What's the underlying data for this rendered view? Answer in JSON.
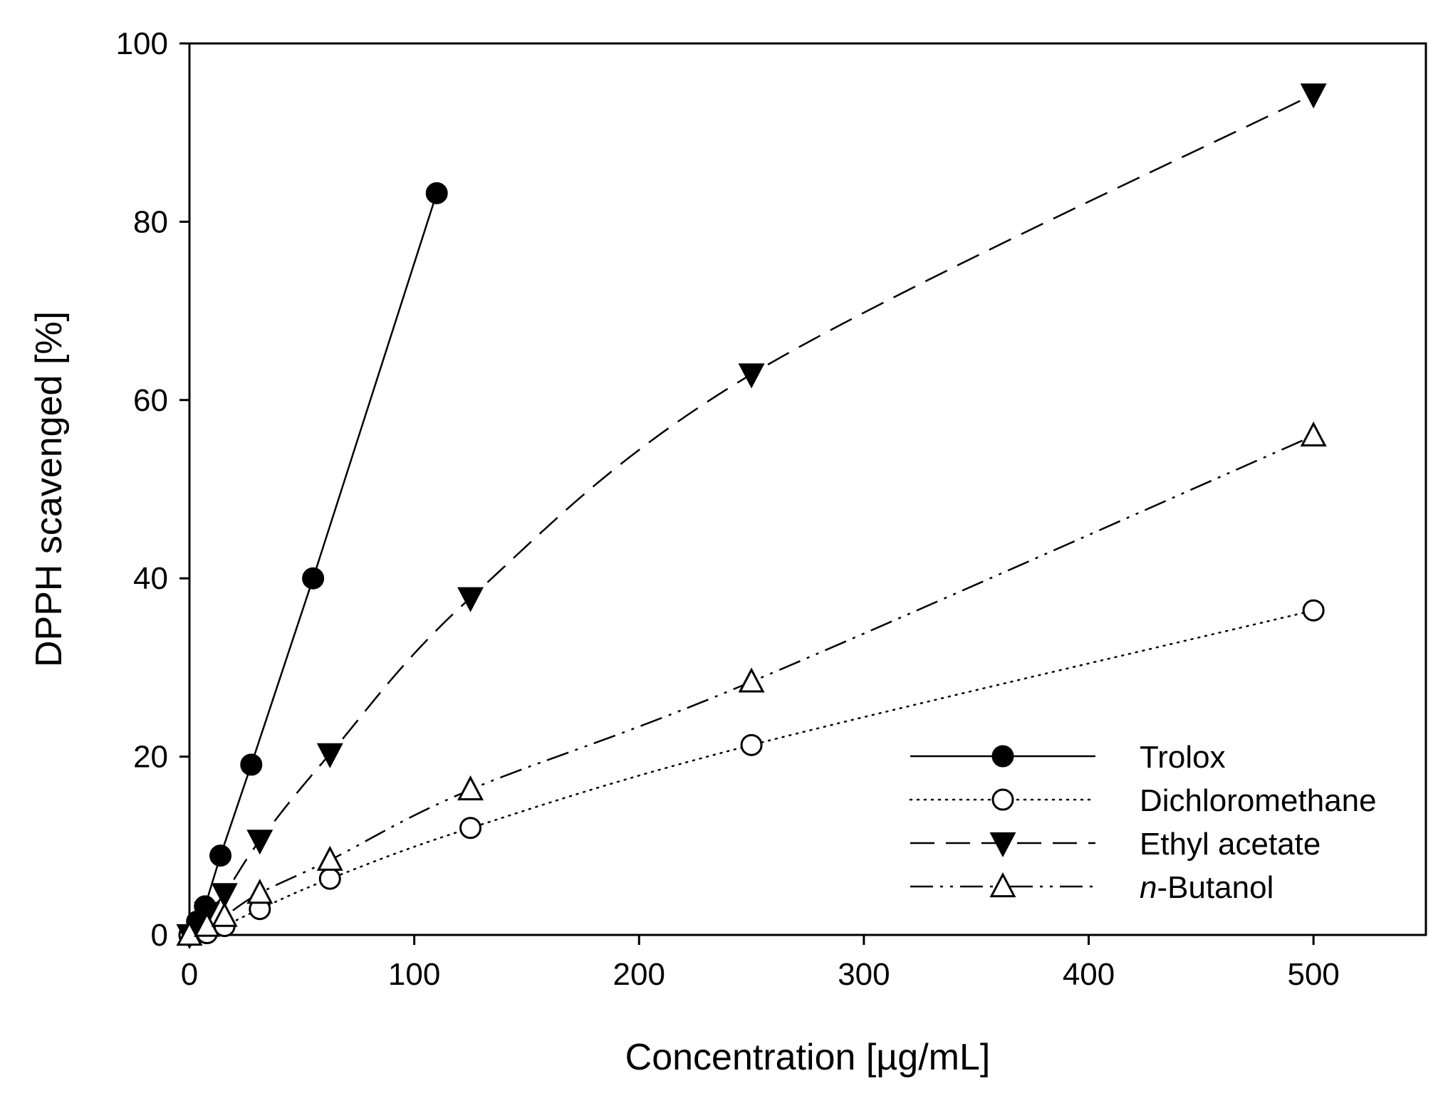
{
  "chart_data": {
    "type": "line",
    "title": "",
    "xlabel": "Concentration [µg/mL]",
    "ylabel": "DPPH scavenged [%]",
    "xlim": [
      0,
      550
    ],
    "ylim": [
      0,
      100
    ],
    "xticks": [
      0,
      100,
      200,
      300,
      400,
      500
    ],
    "yticks": [
      0,
      20,
      40,
      60,
      80,
      100
    ],
    "grid": false,
    "legend_position": "bottom-right",
    "series": [
      {
        "name": "Trolox",
        "name_prefix_italic": "",
        "name_rest": "Trolox",
        "line_style": "solid",
        "marker": "circle-filled",
        "x": [
          0,
          3.4,
          6.9,
          13.8,
          27.5,
          55,
          110
        ],
        "y": [
          0,
          1.5,
          3.2,
          8.9,
          19.1,
          40.0,
          83.2
        ]
      },
      {
        "name": "Dichloromethane",
        "name_prefix_italic": "",
        "name_rest": "Dichloromethane",
        "line_style": "dotted",
        "marker": "circle-open",
        "x": [
          0,
          7.8,
          15.6,
          31.3,
          62.5,
          125,
          250,
          500
        ],
        "y": [
          0,
          0.2,
          1.0,
          2.9,
          6.3,
          12.0,
          21.3,
          36.4
        ]
      },
      {
        "name": "Ethyl acetate",
        "name_prefix_italic": "",
        "name_rest": "Ethyl acetate",
        "line_style": "dashed",
        "marker": "triangle-down-filled",
        "x": [
          0,
          7.8,
          15.6,
          31.3,
          62.5,
          125,
          250,
          500
        ],
        "y": [
          0,
          2.5,
          4.6,
          10.6,
          20.3,
          37.8,
          62.9,
          94.3
        ]
      },
      {
        "name": "n-Butanol",
        "name_prefix_italic": "n",
        "name_rest": "-Butanol",
        "line_style": "dash-dot-dot",
        "marker": "triangle-up-open",
        "x": [
          0,
          7.8,
          15.6,
          31.3,
          62.5,
          125,
          250,
          500
        ],
        "y": [
          0,
          1.0,
          2.1,
          4.7,
          8.4,
          16.3,
          28.4,
          56.0
        ]
      }
    ]
  }
}
